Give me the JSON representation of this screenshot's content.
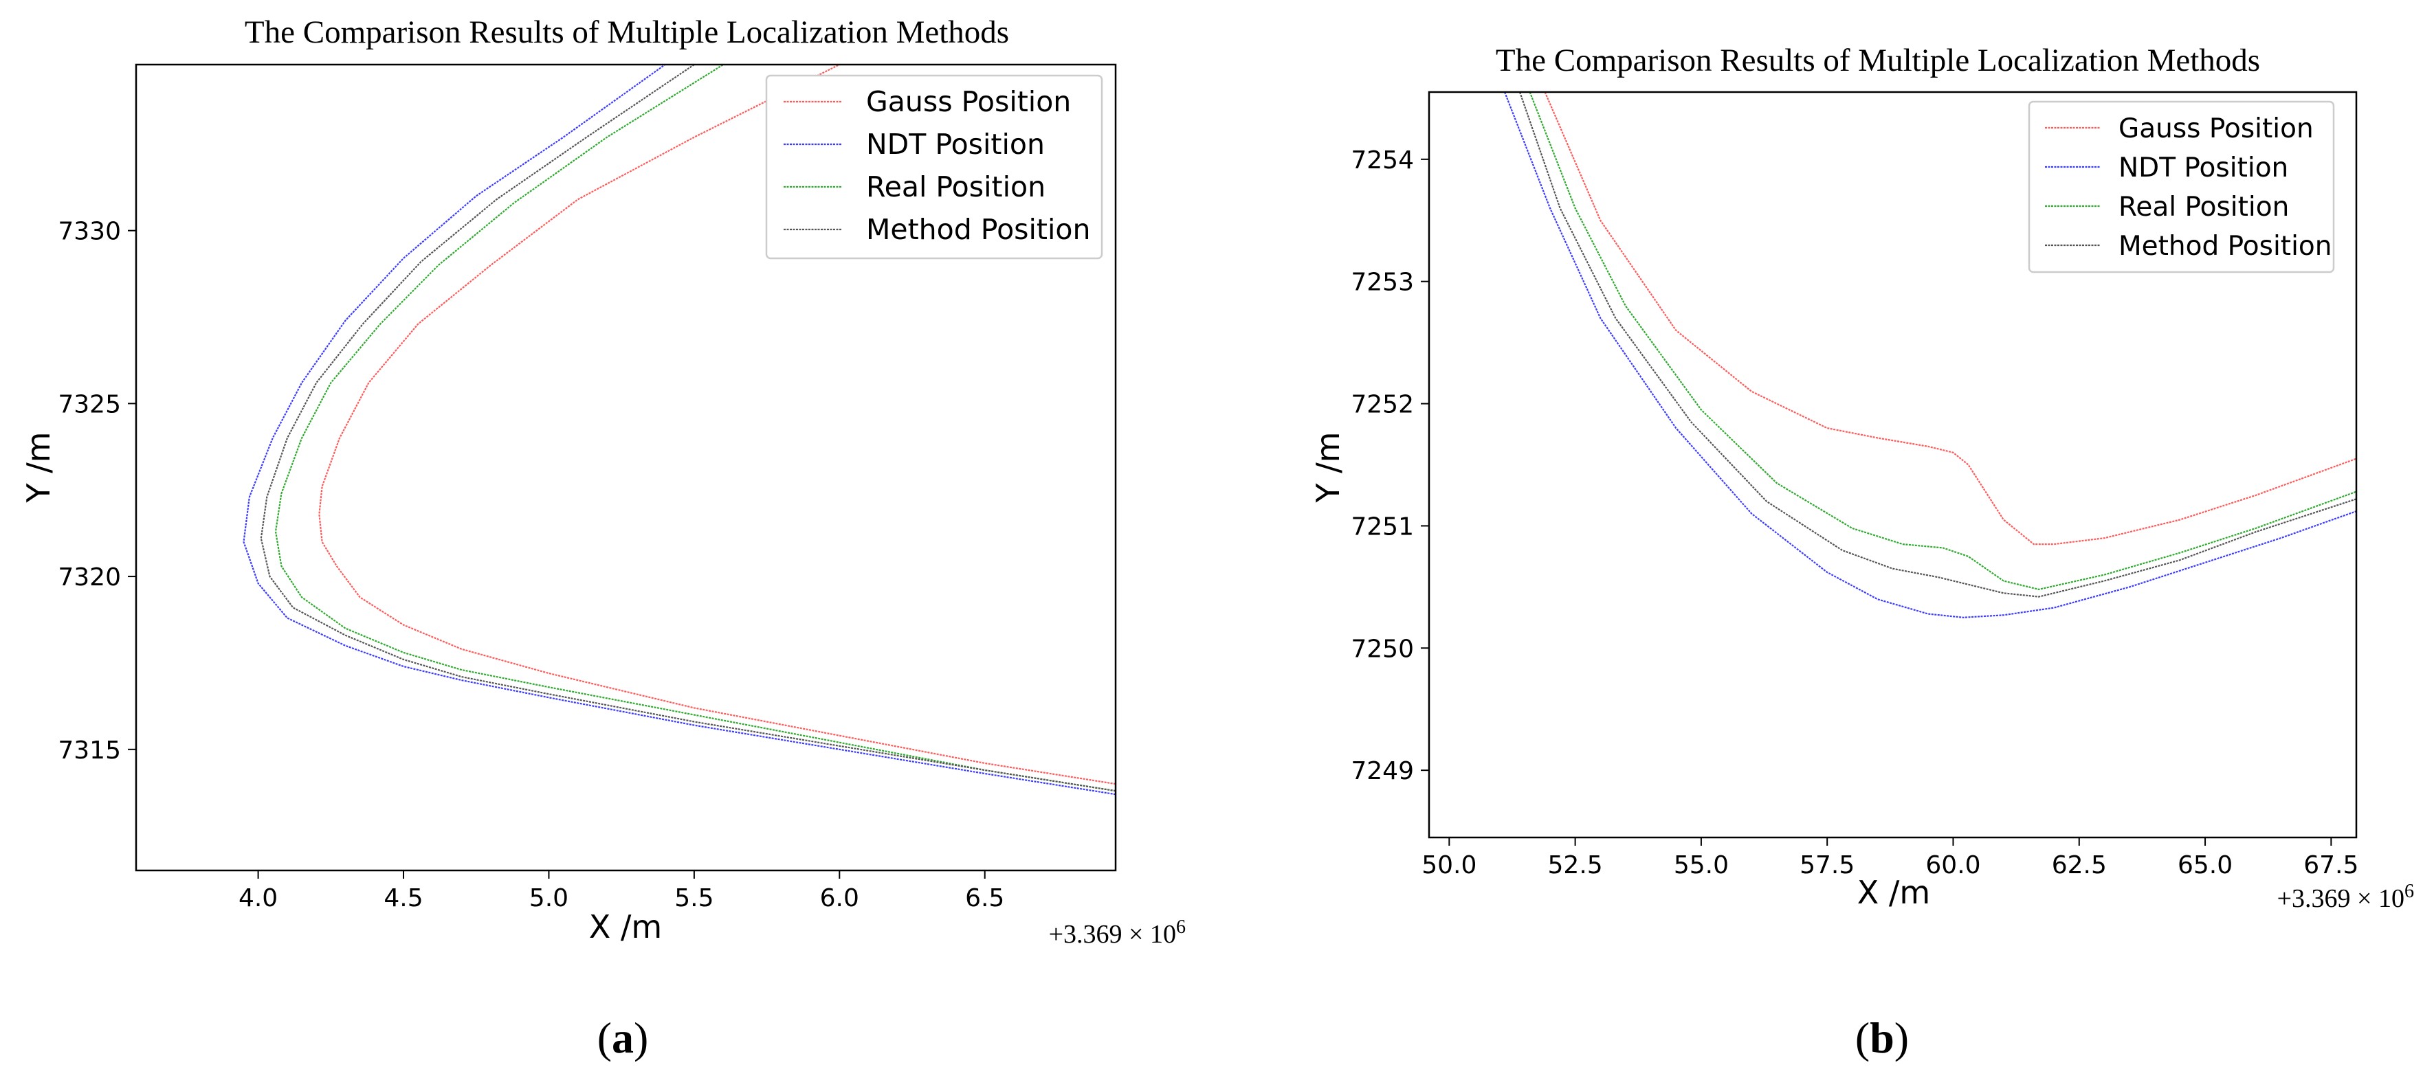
{
  "colors": {
    "gauss": "#ff5a5a",
    "ndt": "#3b3bff",
    "real": "#2eaa2e",
    "method": "#555555",
    "axis": "#000000",
    "legend_border": "#cccccc"
  },
  "charts": {
    "a": {
      "title": "The Comparison Results of Multiple Localization Methods",
      "xlabel": "X /m",
      "ylabel": "Y /m",
      "offset": {
        "prefix": "+3.369 × 10",
        "exp": "6"
      },
      "caption": {
        "open": "(",
        "letter": "a",
        "close": ")"
      },
      "xticks": [
        "4.0",
        "4.5",
        "5.0",
        "5.5",
        "6.0",
        "6.5"
      ],
      "yticks": [
        "7315",
        "7320",
        "7325",
        "7330"
      ],
      "legend": [
        "Gauss Position",
        "NDT Position",
        "Real Position",
        "Method Position"
      ]
    },
    "b": {
      "title": "The Comparison Results of Multiple Localization Methods",
      "xlabel": "X /m",
      "ylabel": "Y /m",
      "offset": {
        "prefix": "+3.369 × 10",
        "exp": "6"
      },
      "caption": {
        "open": "(",
        "letter": "b",
        "close": ")"
      },
      "xticks": [
        "50.0",
        "52.5",
        "55.0",
        "57.5",
        "60.0",
        "62.5",
        "65.0",
        "67.5"
      ],
      "yticks": [
        "7249",
        "7250",
        "7251",
        "7252",
        "7253",
        "7254"
      ],
      "legend": [
        "Gauss Position",
        "NDT Position",
        "Real Position",
        "Method Position"
      ]
    }
  },
  "chart_data": [
    {
      "type": "line",
      "title": "The Comparison Results of Multiple Localization Methods",
      "xlabel": "X /m",
      "ylabel": "Y /m",
      "x_offset": "+3.369 × 10^6",
      "xlim": [
        3.58,
        6.95
      ],
      "ylim": [
        7311.5,
        7334.8
      ],
      "legend_position": "upper right",
      "series": [
        {
          "name": "Gauss Position",
          "x": [
            6.95,
            6.5,
            6.0,
            5.5,
            5.0,
            4.7,
            4.5,
            4.35,
            4.27,
            4.22,
            4.21,
            4.22,
            4.28,
            4.38,
            4.55,
            4.8,
            5.1,
            5.5,
            6.0
          ],
          "y": [
            7314.0,
            7314.6,
            7315.4,
            7316.2,
            7317.2,
            7317.9,
            7318.6,
            7319.4,
            7320.3,
            7321.0,
            7321.8,
            7322.6,
            7324.0,
            7325.6,
            7327.3,
            7329.0,
            7330.9,
            7332.7,
            7334.8
          ]
        },
        {
          "name": "NDT Position",
          "x": [
            6.95,
            6.5,
            6.0,
            5.5,
            5.0,
            4.7,
            4.5,
            4.3,
            4.1,
            4.0,
            3.95,
            3.97,
            4.05,
            4.15,
            4.3,
            4.5,
            4.75,
            5.05,
            5.4
          ],
          "y": [
            7313.7,
            7314.3,
            7315.0,
            7315.7,
            7316.5,
            7317.0,
            7317.4,
            7318.0,
            7318.8,
            7319.8,
            7321.0,
            7322.3,
            7324.0,
            7325.6,
            7327.4,
            7329.2,
            7331.0,
            7332.7,
            7334.8
          ]
        },
        {
          "name": "Real Position",
          "x": [
            6.95,
            6.5,
            6.0,
            5.5,
            5.0,
            4.7,
            4.5,
            4.3,
            4.15,
            4.08,
            4.06,
            4.08,
            4.15,
            4.25,
            4.42,
            4.62,
            4.88,
            5.2,
            5.6
          ],
          "y": [
            7313.8,
            7314.4,
            7315.2,
            7316.0,
            7316.8,
            7317.3,
            7317.8,
            7318.5,
            7319.4,
            7320.3,
            7321.3,
            7322.4,
            7324.0,
            7325.6,
            7327.3,
            7329.0,
            7330.8,
            7332.7,
            7334.8
          ]
        },
        {
          "name": "Method Position",
          "x": [
            6.95,
            6.5,
            6.0,
            5.5,
            5.0,
            4.7,
            4.5,
            4.3,
            4.12,
            4.04,
            4.01,
            4.03,
            4.1,
            4.2,
            4.36,
            4.56,
            4.82,
            5.13,
            5.5
          ],
          "y": [
            7313.8,
            7314.4,
            7315.1,
            7315.8,
            7316.6,
            7317.1,
            7317.6,
            7318.3,
            7319.1,
            7320.0,
            7321.1,
            7322.3,
            7324.0,
            7325.6,
            7327.3,
            7329.1,
            7330.9,
            7332.7,
            7334.8
          ]
        }
      ]
    },
    {
      "type": "line",
      "title": "The Comparison Results of Multiple Localization Methods",
      "xlabel": "X /m",
      "ylabel": "Y /m",
      "x_offset": "+3.369 × 10^6",
      "xlim": [
        49.6,
        68.0
      ],
      "ylim": [
        7248.45,
        7254.55
      ],
      "legend_position": "upper right",
      "series": [
        {
          "name": "Gauss Position",
          "x": [
            51.9,
            53.0,
            54.5,
            56.0,
            57.5,
            58.5,
            59.5,
            60.0,
            60.3,
            61.0,
            61.6,
            62.0,
            63.0,
            64.5,
            66.0,
            68.0
          ],
          "y": [
            7254.55,
            7253.5,
            7252.6,
            7252.1,
            7251.8,
            7251.72,
            7251.65,
            7251.6,
            7251.5,
            7251.05,
            7250.85,
            7250.85,
            7250.9,
            7251.05,
            7251.25,
            7251.55
          ]
        },
        {
          "name": "NDT Position",
          "x": [
            51.1,
            52.0,
            53.0,
            54.5,
            56.0,
            57.5,
            58.5,
            59.5,
            60.2,
            61.0,
            62.0,
            63.5,
            65.0,
            66.5,
            68.0
          ],
          "y": [
            7254.55,
            7253.6,
            7252.7,
            7251.8,
            7251.1,
            7250.62,
            7250.4,
            7250.28,
            7250.25,
            7250.27,
            7250.33,
            7250.5,
            7250.7,
            7250.9,
            7251.12
          ]
        },
        {
          "name": "Real Position",
          "x": [
            51.6,
            52.5,
            53.5,
            55.0,
            56.5,
            58.0,
            59.0,
            59.8,
            60.3,
            61.0,
            61.7,
            63.0,
            64.5,
            66.0,
            68.0
          ],
          "y": [
            7254.55,
            7253.6,
            7252.8,
            7251.95,
            7251.35,
            7250.98,
            7250.85,
            7250.82,
            7250.75,
            7250.55,
            7250.48,
            7250.6,
            7250.78,
            7250.98,
            7251.28
          ]
        },
        {
          "name": "Method Position",
          "x": [
            51.4,
            52.2,
            53.3,
            54.8,
            56.3,
            57.8,
            58.8,
            59.7,
            60.3,
            61.0,
            61.7,
            63.0,
            64.5,
            66.0,
            68.0
          ],
          "y": [
            7254.55,
            7253.6,
            7252.7,
            7251.85,
            7251.2,
            7250.8,
            7250.65,
            7250.58,
            7250.52,
            7250.45,
            7250.42,
            7250.55,
            7250.72,
            7250.95,
            7251.22
          ]
        }
      ]
    }
  ]
}
